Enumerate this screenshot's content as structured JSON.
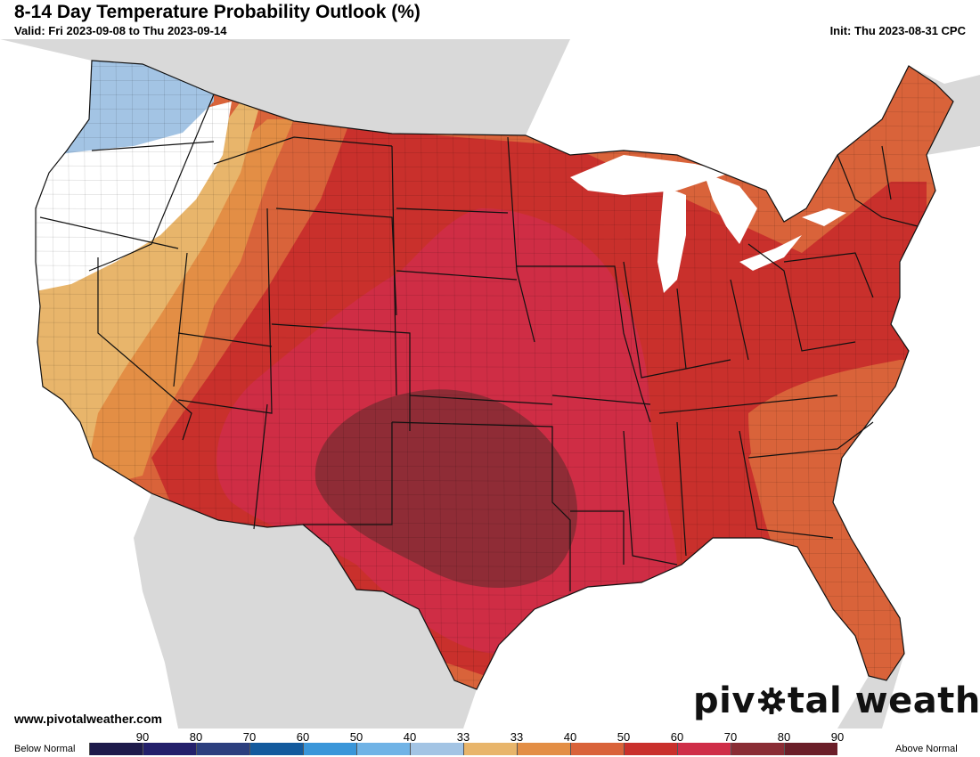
{
  "header": {
    "title": "8-14 Day Temperature Probability Outlook (%)",
    "valid": "Valid: Fri 2023-09-08 to Thu 2023-09-14",
    "init": "Init: Thu 2023-08-31 CPC"
  },
  "map": {
    "region": "Contiguous United States",
    "colors": {
      "land_outside": "#d9d9d9",
      "lakes": "#ffffff",
      "near_normal": "#ffffff",
      "below_33_40": "#a3c4e4",
      "above_33_40": "#e8b56b",
      "above_40_50": "#e38e45",
      "above_50_60": "#d9633a",
      "above_60_70": "#c9302c",
      "above_70_80": "#cf2e48",
      "above_80_90": "#8a2d35"
    },
    "areas": [
      {
        "category": "below_33_40",
        "region": "Washington / northern Oregon"
      },
      {
        "category": "near_normal",
        "region": "Oregon / Idaho panhandle / northern California"
      },
      {
        "category": "above_33_40",
        "region": "California / Nevada / Idaho"
      },
      {
        "category": "above_40_50",
        "region": "Nevada / Utah / Arizona / Montana"
      },
      {
        "category": "above_50_60",
        "region": "Montana / Utah / Arizona / Great Lakes / Northeast / Southeast coast / Florida"
      },
      {
        "category": "above_60_70",
        "region": "Northern Plains / Midwest / Ohio Valley / Mid-Atlantic / Gulf Coast"
      },
      {
        "category": "above_70_80",
        "region": "Central Plains / Southern Plains / Mississippi Valley"
      },
      {
        "category": "above_80_90",
        "region": "Oklahoma / Texas Panhandle / northern Texas"
      }
    ]
  },
  "footer": {
    "website": "www.pivotalweather.com",
    "logo_text_left": "piv",
    "logo_text_right": "tal weather",
    "logo_icon": "gear-icon"
  },
  "legend": {
    "below_label": "Below Normal",
    "above_label": "Above Normal",
    "ticks": [
      "90",
      "80",
      "70",
      "60",
      "50",
      "40",
      "33",
      "33",
      "40",
      "50",
      "60",
      "70",
      "80",
      "90"
    ],
    "swatch_colors": [
      "#1e1b4b",
      "#24206b",
      "#2c3f7e",
      "#135a9d",
      "#3a96d9",
      "#70b3e6",
      "#a3c4e4",
      "#e8b56b",
      "#e38e45",
      "#d9633a",
      "#c9302c",
      "#cf2e48",
      "#8a2d35",
      "#6b1f29"
    ]
  }
}
